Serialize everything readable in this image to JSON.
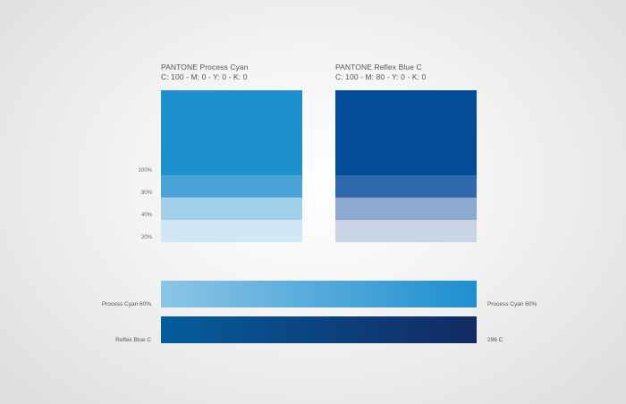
{
  "swatches": [
    {
      "name": "PANTONE Process Cyan",
      "cmyk": "C: 100  -  M: 0  -  Y: 0  -  K: 0",
      "main_color": "#1e8fcf",
      "tints": [
        "#4aa3d6",
        "#a3cfea",
        "#d2e7f4"
      ]
    },
    {
      "name": "PANTONE Reflex Blue C",
      "cmyk": "C: 100  -  M: 80  -  Y: 0  -  K: 0",
      "main_color": "#024c9a",
      "tints": [
        "#3068ae",
        "#8ca9d0",
        "#c9d5e6"
      ]
    }
  ],
  "percent_labels": [
    "100%",
    "80%",
    "40%",
    "20%"
  ],
  "gradients": [
    {
      "left_label": "Process Cyan 60%",
      "right_label": "Process Cyan 60%",
      "from": "#8cc5e6",
      "to": "#1e8fcf"
    },
    {
      "left_label": "Reflex Blue C",
      "right_label": "296 C",
      "from": "#045d9c",
      "to": "#132a62"
    }
  ]
}
